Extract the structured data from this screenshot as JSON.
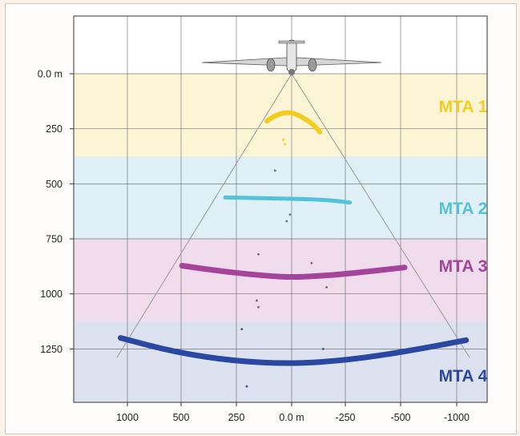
{
  "chart_data": {
    "type": "scatter",
    "title": "",
    "x_ticks": [
      "1000",
      "500",
      "250",
      "0.0 m",
      "-250",
      "-500",
      "-1000"
    ],
    "y_ticks": [
      "0.0 m",
      "250",
      "500",
      "750",
      "1000",
      "1250"
    ],
    "zones": [
      {
        "label": "MTA 1",
        "color": "#f2cc1f",
        "band_color": "#fbf5d6",
        "range_m": [
          0,
          375
        ]
      },
      {
        "label": "MTA 2",
        "color": "#55c2d8",
        "band_color": "#dff0f6",
        "range_m": [
          375,
          750
        ]
      },
      {
        "label": "MTA 3",
        "color": "#a4449a",
        "band_color": "#f0dced",
        "range_m": [
          750,
          1125
        ]
      },
      {
        "label": "MTA 4",
        "color": "#2a48a2",
        "band_color": "#dde2f0",
        "range_m": [
          1125,
          1500
        ]
      }
    ],
    "series": [
      {
        "values": [
          {
            "x": 150,
            "y": 215
          },
          {
            "x": 100,
            "y": 190
          },
          {
            "x": 40,
            "y": 175
          },
          {
            "x": -20,
            "y": 180
          },
          {
            "x": -80,
            "y": 205
          },
          {
            "x": -130,
            "y": 230
          },
          {
            "x": -170,
            "y": 265
          }
        ]
      },
      {
        "values": [
          {
            "x": 400,
            "y": 562
          },
          {
            "x": 200,
            "y": 565
          },
          {
            "x": 0,
            "y": 568
          },
          {
            "x": -200,
            "y": 572
          },
          {
            "x": -350,
            "y": 585
          }
        ]
      },
      {
        "values": [
          {
            "x": 660,
            "y": 872
          },
          {
            "x": 400,
            "y": 900
          },
          {
            "x": 150,
            "y": 918
          },
          {
            "x": 0,
            "y": 925
          },
          {
            "x": -250,
            "y": 915
          },
          {
            "x": -500,
            "y": 895
          },
          {
            "x": -680,
            "y": 880
          }
        ]
      },
      {
        "values": [
          {
            "x": 1030,
            "y": 1200
          },
          {
            "x": 700,
            "y": 1265
          },
          {
            "x": 350,
            "y": 1305
          },
          {
            "x": 0,
            "y": 1318
          },
          {
            "x": -350,
            "y": 1300
          },
          {
            "x": -700,
            "y": 1260
          },
          {
            "x": -1050,
            "y": 1210
          }
        ]
      }
    ],
    "scatter_points": [
      {
        "x": 50,
        "y": 300
      },
      {
        "x": 40,
        "y": 320
      },
      {
        "x": 100,
        "y": 440
      },
      {
        "x": 10,
        "y": 640
      },
      {
        "x": 30,
        "y": 670
      },
      {
        "x": 200,
        "y": 820
      },
      {
        "x": -120,
        "y": 860
      },
      {
        "x": -210,
        "y": 970
      },
      {
        "x": 210,
        "y": 1030
      },
      {
        "x": 200,
        "y": 1060
      },
      {
        "x": 300,
        "y": 1160
      },
      {
        "x": -190,
        "y": 1250
      },
      {
        "x": 270,
        "y": 1420
      }
    ],
    "xlim": [
      1220,
      -1220
    ],
    "ylim": [
      0,
      1500
    ],
    "grid": true,
    "colors": {
      "axis": "#333333",
      "grid": "#555555",
      "cone": "#9a9a9a",
      "plot_bg": "#ffffff",
      "page_bg": "#fbf3ea"
    }
  },
  "icons": {
    "aircraft": "aircraft-icon"
  }
}
